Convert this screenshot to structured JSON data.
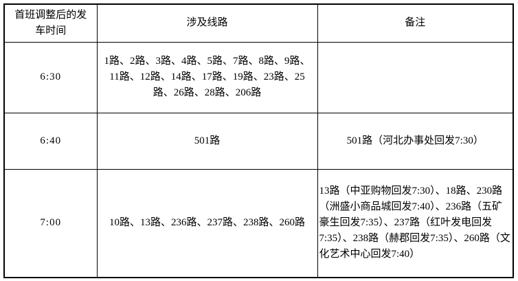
{
  "table": {
    "title": "bus-first-departure-adjustment",
    "headers": {
      "time": "首班调整后的发车时间",
      "routes": "涉及线路",
      "remark": "备注"
    },
    "rows": [
      {
        "time": "6:30",
        "routes": "1路、2路、3路、4路、5路、7路、8路、9路、11路、12路、14路、17路、19路、23路、25路、26路、28路、206路",
        "remark": ""
      },
      {
        "time": "6:40",
        "routes": "501路",
        "remark": "501路（河北办事处回发7:30）"
      },
      {
        "time": "7:00",
        "routes": "10路、13路、236路、237路、238路、260路",
        "remark": "13路（中亚购物回发7:30）、18路、230路（洲盛小商品城回发7:40）、236路（五矿豪生回发7:35）、237路（红叶发电回发7:35）、238路（赫郡回发7:35）、260路（文化艺术中心回发7:40）"
      }
    ],
    "colors": {
      "border": "#000000",
      "text": "#000000",
      "background": "#ffffff"
    }
  }
}
